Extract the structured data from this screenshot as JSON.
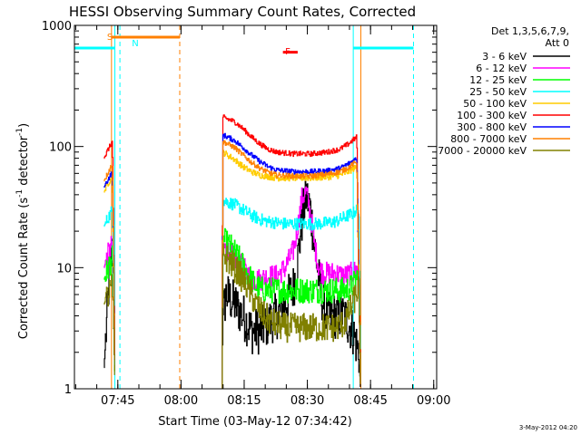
{
  "chart_data": {
    "type": "line",
    "title": "HESSI Observing Summary Count Rates, Corrected",
    "xlabel": "Start Time (03-May-12 07:34:42)",
    "ylabel_main": "Corrected Count Rate (s",
    "ylabel_sup1": "-1",
    "ylabel_mid": " detector",
    "ylabel_sup2": "-1",
    "ylabel_end": ")",
    "timestamp": "3-May-2012 04:20",
    "x_axis": {
      "unit": "minutes after 07:34:42",
      "range": [
        0,
        86
      ],
      "ticks": [
        {
          "label": "07:45",
          "value": 10.3
        },
        {
          "label": "08:00",
          "value": 25.3
        },
        {
          "label": "08:15",
          "value": 40.3
        },
        {
          "label": "08:30",
          "value": 55.3
        },
        {
          "label": "08:45",
          "value": 70.3
        },
        {
          "label": "09:00",
          "value": 85.3
        }
      ]
    },
    "y_axis": {
      "scale": "log",
      "range": [
        1,
        1000
      ],
      "ticks": [
        {
          "label": "1",
          "value": 1
        },
        {
          "label": "10",
          "value": 10
        },
        {
          "label": "100",
          "value": 100
        },
        {
          "label": "1000",
          "value": 1000
        }
      ]
    },
    "legend": {
      "placement": "top-right, outside plot",
      "header_line1": "Det 1,3,5,6,7,9,",
      "header_line2": "Att 0"
    },
    "series": [
      {
        "name": "3 - 6 keV",
        "color": "#000000",
        "base": [
          [
            7,
            1.5
          ],
          [
            8.5,
            12
          ],
          [
            9,
            14
          ],
          [
            9.6,
            1
          ]
        ],
        "segments": [
          [
            [
              35,
              1
            ],
            [
              35.2,
              4
            ],
            [
              36,
              6
            ],
            [
              38,
              5
            ],
            [
              40,
              4
            ],
            [
              42,
              3
            ],
            [
              44,
              3
            ],
            [
              46,
              3.5
            ],
            [
              48,
              4
            ],
            [
              50,
              5
            ],
            [
              52,
              7
            ],
            [
              53,
              12
            ],
            [
              54,
              25
            ],
            [
              55,
              40
            ],
            [
              56,
              30
            ],
            [
              57,
              15
            ],
            [
              58,
              8
            ],
            [
              59,
              5
            ],
            [
              60,
              4
            ],
            [
              62,
              4
            ],
            [
              64,
              4
            ],
            [
              66,
              3
            ],
            [
              67.5,
              2
            ],
            [
              67.9,
              1
            ]
          ]
        ]
      },
      {
        "name": "6 - 12 keV",
        "color": "#ff00ff",
        "base": [
          [
            7,
            10
          ],
          [
            8,
            13
          ],
          [
            9,
            16
          ],
          [
            9.6,
            1
          ]
        ],
        "segments": [
          [
            [
              35,
              1
            ],
            [
              35.2,
              15
            ],
            [
              38,
              12
            ],
            [
              40,
              10
            ],
            [
              42,
              8
            ],
            [
              44,
              8
            ],
            [
              46,
              8.5
            ],
            [
              48,
              8.5
            ],
            [
              50,
              10
            ],
            [
              52,
              14
            ],
            [
              53,
              22
            ],
            [
              54,
              38
            ],
            [
              55,
              42
            ],
            [
              56,
              28
            ],
            [
              57,
              15
            ],
            [
              58,
              10
            ],
            [
              59,
              9
            ],
            [
              60,
              9
            ],
            [
              62,
              9
            ],
            [
              64,
              8.5
            ],
            [
              66,
              9
            ],
            [
              67.5,
              10
            ],
            [
              67.9,
              1
            ]
          ]
        ]
      },
      {
        "name": "12 - 25 keV",
        "color": "#00ff00",
        "base": [
          [
            7,
            8
          ],
          [
            8,
            10
          ],
          [
            9,
            12
          ],
          [
            9.6,
            1
          ]
        ],
        "segments": [
          [
            [
              35,
              1
            ],
            [
              35.2,
              17
            ],
            [
              37,
              15
            ],
            [
              39,
              12
            ],
            [
              41,
              9
            ],
            [
              43,
              7
            ],
            [
              45,
              6.5
            ],
            [
              48,
              6.5
            ],
            [
              52,
              6.5
            ],
            [
              56,
              6.5
            ],
            [
              60,
              6.5
            ],
            [
              64,
              6.5
            ],
            [
              66,
              7
            ],
            [
              67.5,
              9
            ],
            [
              67.9,
              1
            ]
          ]
        ]
      },
      {
        "name": "25 - 50 keV",
        "color": "#00ffff",
        "base": [
          [
            7,
            22
          ],
          [
            8,
            26
          ],
          [
            9,
            30
          ],
          [
            9.6,
            1
          ]
        ],
        "segments": [
          [
            [
              35,
              1
            ],
            [
              35.2,
              36
            ],
            [
              38,
              33
            ],
            [
              40,
              30
            ],
            [
              42,
              27
            ],
            [
              44,
              25
            ],
            [
              46,
              24
            ],
            [
              50,
              23
            ],
            [
              54,
              23
            ],
            [
              58,
              23
            ],
            [
              62,
              24
            ],
            [
              64,
              26
            ],
            [
              66,
              28
            ],
            [
              67.5,
              31
            ],
            [
              67.9,
              1
            ]
          ]
        ]
      },
      {
        "name": "50 - 100 keV",
        "color": "#ffcc00",
        "base": [
          [
            7,
            42
          ],
          [
            8,
            50
          ],
          [
            9,
            58
          ],
          [
            9.6,
            1
          ]
        ],
        "segments": [
          [
            [
              35,
              1
            ],
            [
              35.2,
              90
            ],
            [
              38,
              78
            ],
            [
              40,
              68
            ],
            [
              42,
              62
            ],
            [
              44,
              58
            ],
            [
              48,
              55
            ],
            [
              52,
              55
            ],
            [
              56,
              55
            ],
            [
              60,
              56
            ],
            [
              63,
              58
            ],
            [
              65,
              62
            ],
            [
              67,
              68
            ],
            [
              67.9,
              1
            ]
          ]
        ]
      },
      {
        "name": "100 - 300 keV",
        "color": "#ff0000",
        "base": [
          [
            7,
            80
          ],
          [
            8,
            95
          ],
          [
            9,
            110
          ],
          [
            9.6,
            1
          ]
        ],
        "segments": [
          [
            [
              35,
              1
            ],
            [
              35.2,
              175
            ],
            [
              38,
              160
            ],
            [
              40,
              140
            ],
            [
              42,
              120
            ],
            [
              44,
              105
            ],
            [
              46,
              95
            ],
            [
              48,
              90
            ],
            [
              52,
              87
            ],
            [
              56,
              87
            ],
            [
              60,
              90
            ],
            [
              63,
              95
            ],
            [
              65,
              105
            ],
            [
              67,
              120
            ],
            [
              67.9,
              1
            ]
          ]
        ]
      },
      {
        "name": "300 - 800 keV",
        "color": "#0000ff",
        "base": [
          [
            7,
            46
          ],
          [
            8,
            54
          ],
          [
            9,
            62
          ],
          [
            9.6,
            1
          ]
        ],
        "segments": [
          [
            [
              35,
              1
            ],
            [
              35.2,
              125
            ],
            [
              38,
              112
            ],
            [
              40,
              98
            ],
            [
              42,
              85
            ],
            [
              44,
              75
            ],
            [
              46,
              68
            ],
            [
              48,
              64
            ],
            [
              52,
              62
            ],
            [
              56,
              62
            ],
            [
              60,
              63
            ],
            [
              63,
              66
            ],
            [
              65,
              72
            ],
            [
              67,
              80
            ],
            [
              67.9,
              1
            ]
          ]
        ]
      },
      {
        "name": "800 - 7000 keV",
        "color": "#ff8000",
        "base": [
          [
            7,
            52
          ],
          [
            8,
            62
          ],
          [
            9,
            72
          ],
          [
            9.6,
            1
          ]
        ],
        "segments": [
          [
            [
              35,
              1
            ],
            [
              35.2,
              110
            ],
            [
              38,
              98
            ],
            [
              40,
              85
            ],
            [
              42,
              74
            ],
            [
              44,
              66
            ],
            [
              46,
              61
            ],
            [
              48,
              58
            ],
            [
              52,
              57
            ],
            [
              56,
              57
            ],
            [
              60,
              59
            ],
            [
              63,
              62
            ],
            [
              65,
              67
            ],
            [
              67,
              75
            ],
            [
              67.9,
              1
            ]
          ]
        ]
      },
      {
        "name": "7000 - 20000 keV",
        "color": "#808000",
        "base": [
          [
            7,
            5
          ],
          [
            8,
            6
          ],
          [
            9,
            7
          ],
          [
            9.6,
            1
          ]
        ],
        "segments": [
          [
            [
              35,
              1
            ],
            [
              35.2,
              13
            ],
            [
              37,
              11
            ],
            [
              39,
              9
            ],
            [
              41,
              7
            ],
            [
              43,
              5
            ],
            [
              45,
              4
            ],
            [
              47,
              3.5
            ],
            [
              50,
              3.2
            ],
            [
              54,
              3.2
            ],
            [
              58,
              3.2
            ],
            [
              62,
              3.2
            ],
            [
              64,
              3.5
            ],
            [
              66,
              5
            ],
            [
              67.5,
              7
            ],
            [
              67.9,
              1
            ]
          ]
        ]
      }
    ],
    "annotations": [
      {
        "label": "S",
        "color": "#ff8000"
      },
      {
        "label": "N",
        "color": "#00ffff"
      },
      {
        "label": "F",
        "color": "#ff0000"
      }
    ],
    "flags": {
      "saa_bar": {
        "color": "#ff8000",
        "x": [
          8.8,
          25.0
        ],
        "y": 800
      },
      "night_bars": [
        {
          "color": "#00ffff",
          "x": [
            0,
            9.6
          ],
          "y": 650
        },
        {
          "color": "#00ffff",
          "x": [
            66.2,
            80.5
          ],
          "y": 650
        }
      ],
      "flare_bar": {
        "color": "#ff0000",
        "x": [
          49.5,
          53.0
        ],
        "y": 600
      }
    },
    "vertical_markers": [
      {
        "x": 8.8,
        "color": "#ff8000",
        "style": "solid"
      },
      {
        "x": 9.6,
        "color": "#00ffff",
        "style": "solid"
      },
      {
        "x": 10.8,
        "color": "#00ffff",
        "style": "dashed"
      },
      {
        "x": 25.0,
        "color": "#ff8000",
        "style": "dashed"
      },
      {
        "x": 66.2,
        "color": "#00ffff",
        "style": "solid"
      },
      {
        "x": 68.0,
        "color": "#ff8000",
        "style": "solid"
      },
      {
        "x": 80.5,
        "color": "#00ffff",
        "style": "dashed"
      }
    ]
  }
}
